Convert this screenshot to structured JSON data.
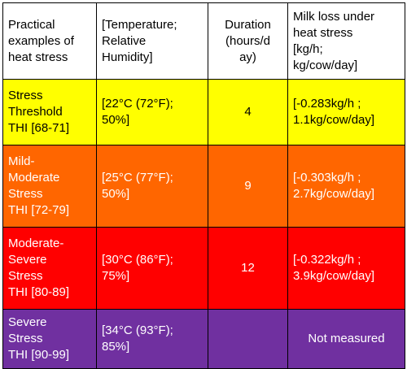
{
  "header": {
    "col1": "Practical\nexamples of\nheat stress",
    "col2": "[Temperature;\nRelative\nHumidity]",
    "col3": "Duration\n(hours/d\nay)",
    "col4": "Milk loss under\nheat stress\n[kg/h;\nkg/cow/day]"
  },
  "rows": [
    {
      "level": "Stress\nThreshold\nTHI [68-71]",
      "conditions": "[22°C (72°F);\n50%]",
      "duration": "4",
      "milk_loss": "[-0.283kg/h ;\n1.1kg/cow/day]"
    },
    {
      "level": "Mild-\nModerate\nStress\nTHI [72-79]",
      "conditions": "[25°C (77°F);\n50%]",
      "duration": "9",
      "milk_loss": "[-0.303kg/h ;\n2.7kg/cow/day]"
    },
    {
      "level": "Moderate-\nSevere\nStress\nTHI [80-89]",
      "conditions": "[30°C (86°F);\n75%]",
      "duration": "12",
      "milk_loss": "[-0.322kg/h ;\n3.9kg/cow/day]"
    },
    {
      "level": "Severe\nStress\nTHI [90-99]",
      "conditions": "[34°C (93°F);\n85%]",
      "duration": "",
      "milk_loss": "Not measured"
    }
  ],
  "colors": {
    "threshold": "#ffff00",
    "mild_moderate": "#ff6600",
    "moderate_severe": "#ff0000",
    "severe": "#7030a0"
  }
}
